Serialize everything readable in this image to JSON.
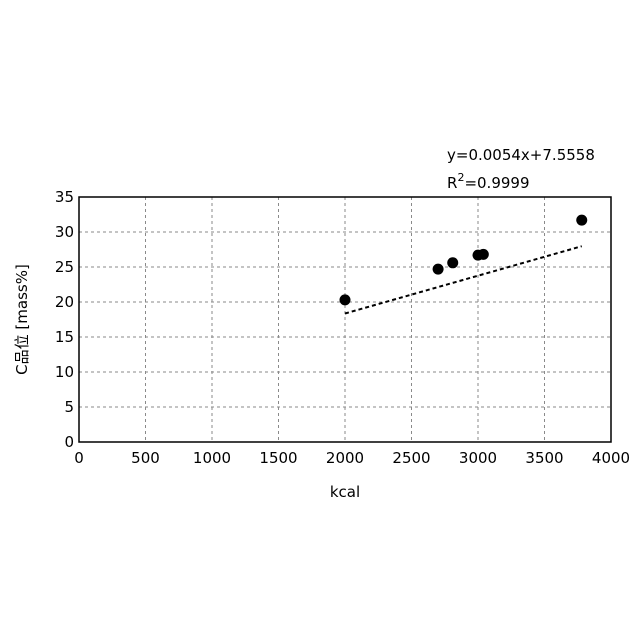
{
  "chart_data": {
    "type": "scatter",
    "xlabel": "kcal",
    "ylabel": "C品位 [mass%]",
    "xlim": [
      0,
      4000
    ],
    "ylim": [
      0,
      35
    ],
    "x_ticks": [
      0,
      500,
      1000,
      1500,
      2000,
      2500,
      3000,
      3500,
      4000
    ],
    "y_ticks": [
      0,
      5,
      10,
      15,
      20,
      25,
      30,
      35
    ],
    "grid": true,
    "grid_style": "dashed",
    "points": [
      {
        "x": 2000,
        "y": 20.3
      },
      {
        "x": 2700,
        "y": 24.7
      },
      {
        "x": 2810,
        "y": 25.6
      },
      {
        "x": 3000,
        "y": 26.7
      },
      {
        "x": 3040,
        "y": 26.8
      },
      {
        "x": 3780,
        "y": 31.7
      }
    ],
    "trendline": {
      "slope": 0.0054,
      "intercept": 7.5558,
      "x_range": [
        2000,
        3780
      ],
      "style": "dashed"
    },
    "annotations": {
      "equation": "y=0.0054x+7.5558",
      "r2_prefix": "R",
      "r2_sup": "2",
      "r2_value": "=0.9999"
    },
    "colors": {
      "marker": "#000000",
      "grid": "#8a8a8a",
      "axis": "#000000"
    }
  }
}
